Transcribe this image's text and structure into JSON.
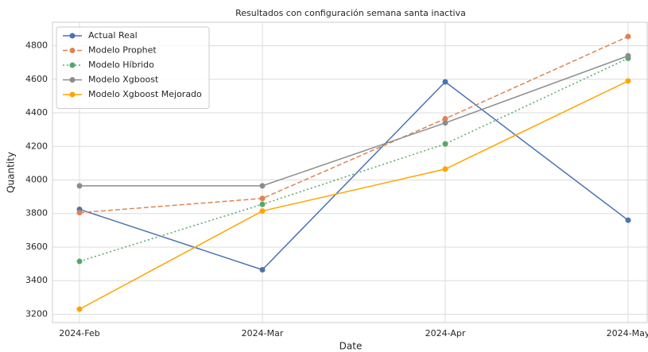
{
  "chart_data": {
    "type": "line",
    "title": "Resultados con configuración semana santa inactiva",
    "x_label": "Date",
    "y_label": "Quantity",
    "categories": [
      "2024-Feb",
      "2024-Mar",
      "2024-Apr",
      "2024-May"
    ],
    "series": [
      {
        "name": "Actual Real",
        "color": "#4c72b0",
        "dash": "solid",
        "values": [
          3825,
          3465,
          4585,
          3760
        ]
      },
      {
        "name": "Modelo Prophet",
        "color": "#dd8452",
        "dash": "dashed",
        "values": [
          3805,
          3890,
          4365,
          4855
        ]
      },
      {
        "name": "Modelo Híbrido",
        "color": "#55a868",
        "dash": "dotted",
        "values": [
          3515,
          3855,
          4215,
          4725
        ]
      },
      {
        "name": "Modelo Xgboost",
        "color": "#8c8c8c",
        "dash": "solid",
        "values": [
          3965,
          3965,
          4340,
          4740
        ]
      },
      {
        "name": "Modelo Xgboost Mejorado",
        "color": "#ffa500",
        "dash": "solid",
        "values": [
          3230,
          3815,
          4065,
          4590
        ]
      }
    ],
    "ylim": [
      3150,
      4940
    ],
    "yticks": [
      3200,
      3400,
      3600,
      3800,
      4000,
      4200,
      4400,
      4600,
      4800
    ],
    "grid": true,
    "legend": "upper left"
  }
}
